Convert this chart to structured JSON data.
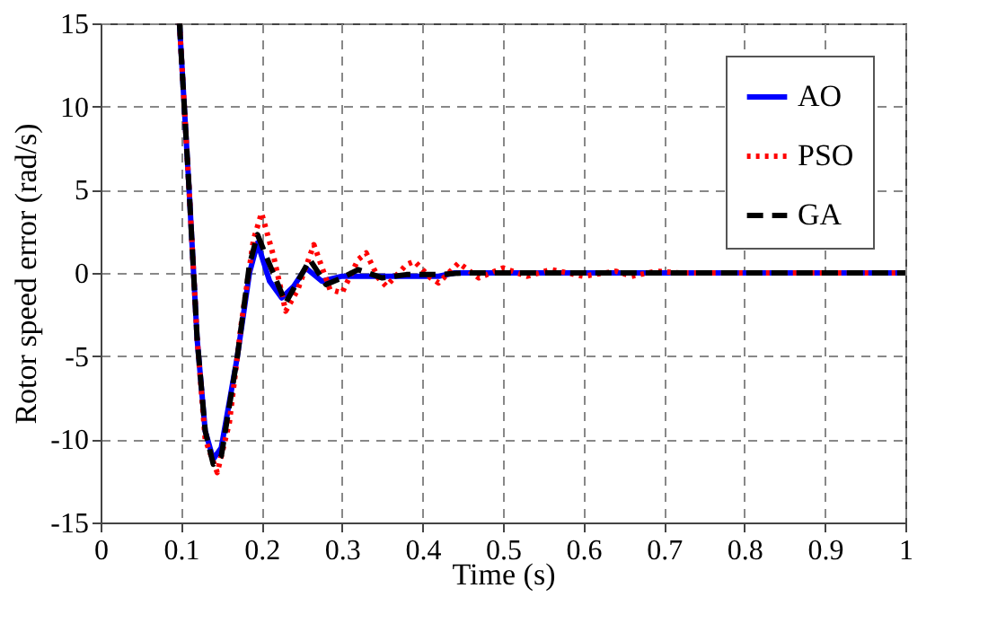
{
  "chart_data": {
    "type": "line",
    "xlabel": "Time (s)",
    "ylabel": "Rotor speed error (rad/s)",
    "xlim": [
      0,
      1
    ],
    "ylim": [
      -15,
      15
    ],
    "xticks": [
      0,
      0.1,
      0.2,
      0.3,
      0.4,
      0.5,
      0.6,
      0.7,
      0.8,
      0.9,
      1
    ],
    "yticks": [
      -15,
      -10,
      -5,
      0,
      5,
      10,
      15
    ],
    "grid": true,
    "legend": "top right",
    "marker": "none",
    "series": [
      {
        "name": "AO",
        "color": "#0000ff",
        "line_style": "solid",
        "x": [
          0.098,
          0.11,
          0.12,
          0.13,
          0.14,
          0.15,
          0.17,
          0.185,
          0.195,
          0.21,
          0.225,
          0.24,
          0.255,
          0.275,
          0.3,
          0.35,
          0.42,
          0.44,
          1
        ],
        "values": [
          15,
          5,
          -4,
          -9.5,
          -11.2,
          -10.5,
          -5,
          0,
          1.8,
          -0.5,
          -1.5,
          -0.8,
          0.3,
          -0.5,
          -0.2,
          -0.2,
          -0.2,
          0,
          0
        ]
      },
      {
        "name": "PSO",
        "color": "#ff0000",
        "line_style": "dotted",
        "x": [
          0.098,
          0.11,
          0.12,
          0.13,
          0.145,
          0.16,
          0.175,
          0.19,
          0.2,
          0.215,
          0.23,
          0.245,
          0.265,
          0.285,
          0.3,
          0.32,
          0.33,
          0.345,
          0.355,
          0.38,
          0.39,
          0.41,
          0.42,
          0.445,
          0.47,
          0.5,
          0.53,
          0.56,
          0.6,
          0.64,
          0.66,
          0.69,
          0.72,
          1
        ],
        "values": [
          15,
          5,
          -4,
          -10,
          -12,
          -9,
          -3,
          2,
          3.6,
          1,
          -2.3,
          -1,
          1.7,
          -1,
          -1.2,
          0.8,
          1.2,
          -0.3,
          -0.8,
          0.5,
          0.7,
          -0.3,
          -0.6,
          0.6,
          -0.3,
          0.3,
          -0.2,
          0.2,
          -0.2,
          0.1,
          -0.2,
          0.1,
          0,
          0
        ]
      },
      {
        "name": "GA",
        "color": "#000000",
        "line_style": "dashed",
        "x": [
          0.098,
          0.11,
          0.12,
          0.13,
          0.14,
          0.15,
          0.17,
          0.185,
          0.195,
          0.21,
          0.23,
          0.245,
          0.26,
          0.28,
          0.3,
          0.32,
          0.35,
          0.38,
          0.42,
          0.45,
          1
        ],
        "values": [
          15,
          5,
          -4,
          -9.5,
          -11.5,
          -11,
          -5,
          0.5,
          2.3,
          0.5,
          -1.8,
          -0.5,
          0.8,
          -0.7,
          -0.3,
          0.2,
          -0.3,
          -0.1,
          -0.1,
          0,
          0
        ]
      }
    ]
  }
}
